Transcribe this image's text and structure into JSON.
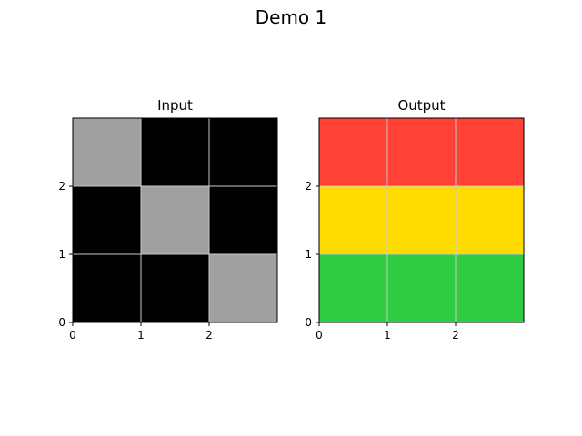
{
  "chart_data": {
    "type": "heatmap",
    "title": "Demo 1",
    "palette": {
      "0": "#000000",
      "5": "#a0a0a0",
      "2": "#ff4136",
      "4": "#ffdc00",
      "3": "#2ecc40"
    },
    "grid_color": "#c8c8c8",
    "panels": [
      {
        "title": "Input",
        "grid": [
          [
            5,
            0,
            0
          ],
          [
            0,
            5,
            0
          ],
          [
            0,
            0,
            5
          ]
        ],
        "xticks": [
          "0",
          "1",
          "2"
        ],
        "yticks": [
          "0",
          "1",
          "2"
        ]
      },
      {
        "title": "Output",
        "grid": [
          [
            2,
            2,
            2
          ],
          [
            4,
            4,
            4
          ],
          [
            3,
            3,
            3
          ]
        ],
        "xticks": [
          "0",
          "1",
          "2"
        ],
        "yticks": [
          "0",
          "1",
          "2"
        ]
      }
    ]
  }
}
